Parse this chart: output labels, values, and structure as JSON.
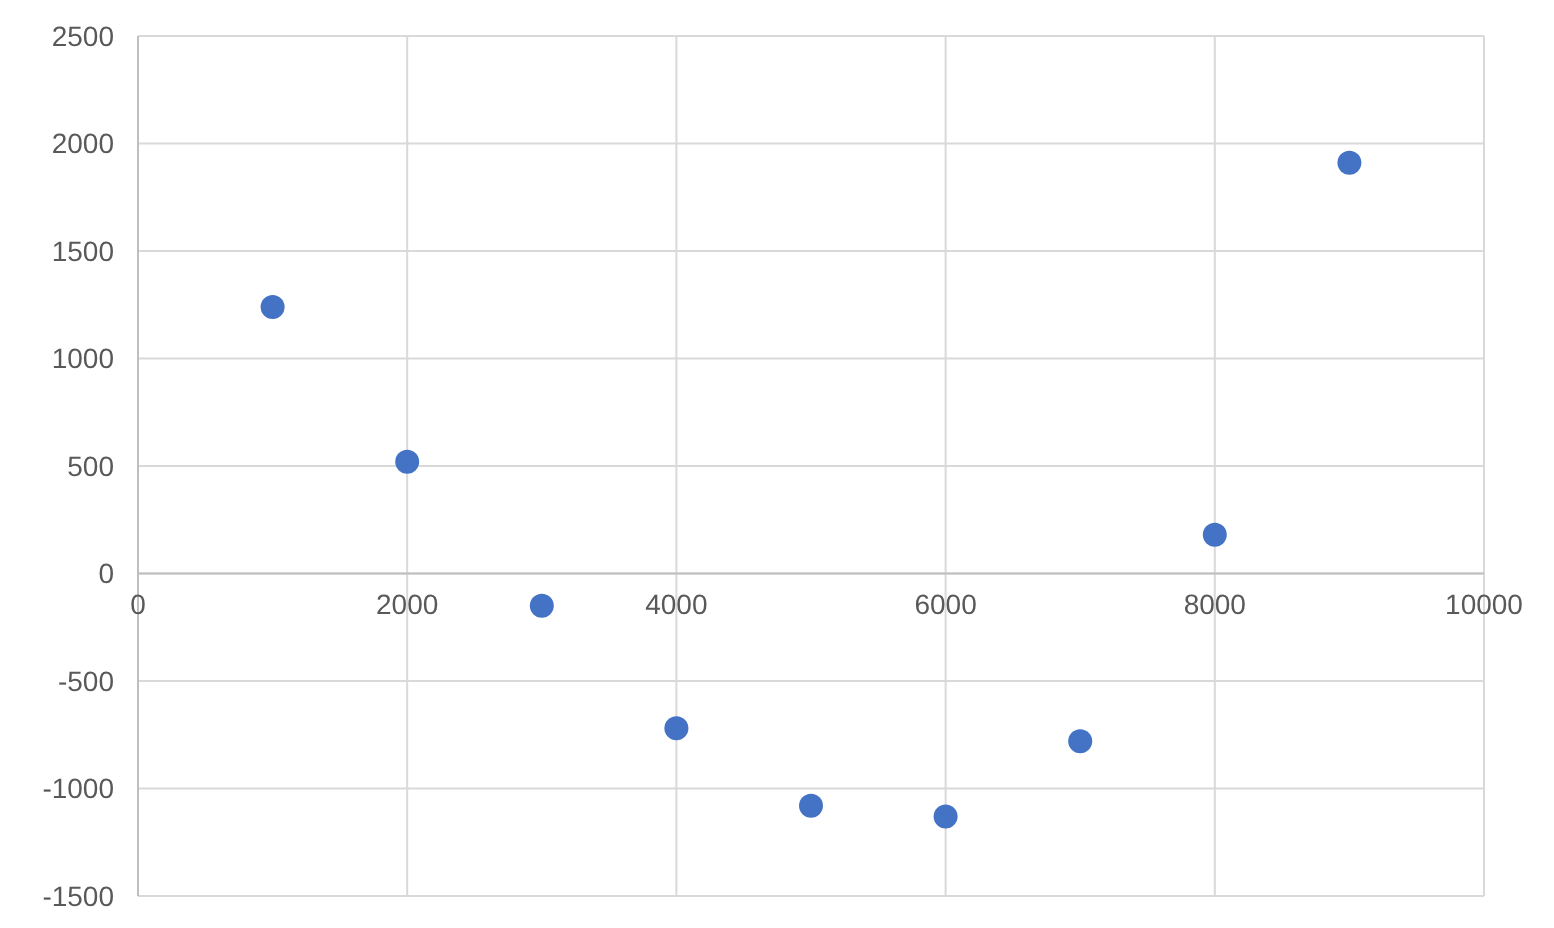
{
  "chart_data": {
    "type": "scatter",
    "x": [
      1000,
      2000,
      3000,
      4000,
      5000,
      6000,
      7000,
      8000,
      9000
    ],
    "series": [
      {
        "color": "#4472c4",
        "values": [
          1240,
          520,
          -150,
          -720,
          -1080,
          -1130,
          -780,
          180,
          1910
        ]
      }
    ],
    "xlim": [
      0,
      10000
    ],
    "xticks": [
      0,
      2000,
      4000,
      6000,
      8000,
      10000
    ],
    "ylim": [
      -1500,
      2500
    ],
    "yticks": [
      -1500,
      -1000,
      -500,
      0,
      500,
      1000,
      1500,
      2000,
      2500
    ],
    "grid": true,
    "marker": "circle"
  }
}
